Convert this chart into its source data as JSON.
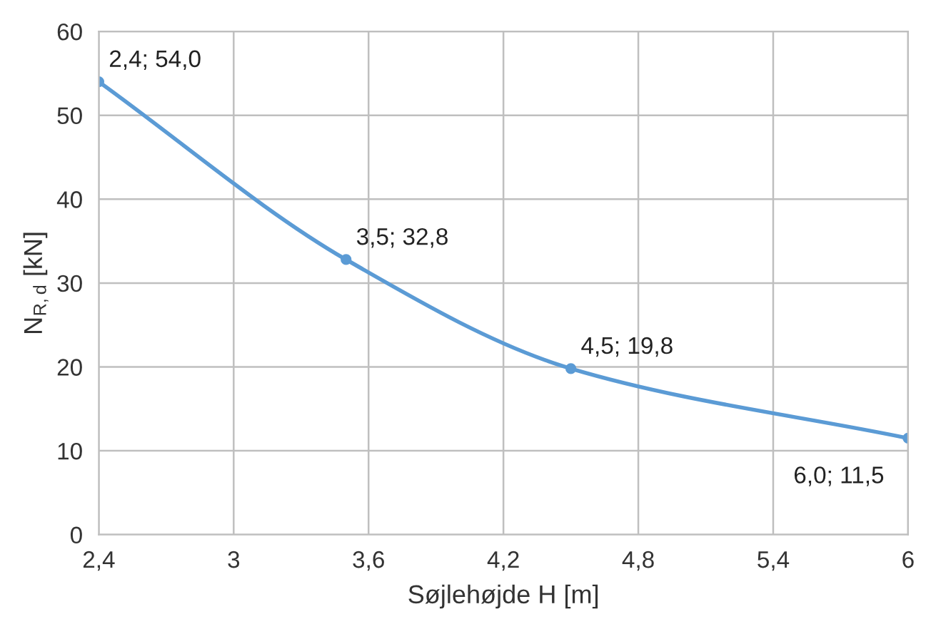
{
  "chart_data": {
    "type": "line",
    "xlabel": "Søjlehøjde H [m]",
    "ylabel": "N$_{R,d}$ [kN]",
    "x": [
      2.4,
      3.5,
      4.5,
      6.0
    ],
    "series": [
      {
        "color": "#5b9bd5",
        "values": [
          54.0,
          32.8,
          19.8,
          11.5
        ]
      }
    ],
    "marker": "circle",
    "line_style": "solid",
    "grid": true,
    "legend": false,
    "xlim": [
      2.4,
      6
    ],
    "ylim": [
      0,
      60
    ],
    "xticks": [
      {
        "value": 2.4,
        "label": "2,4"
      },
      {
        "value": 3,
        "label": "3"
      },
      {
        "value": 3.6,
        "label": "3,6"
      },
      {
        "value": 4.2,
        "label": "4,2"
      },
      {
        "value": 4.8,
        "label": "4,8"
      },
      {
        "value": 5.4,
        "label": "5,4"
      },
      {
        "value": 6,
        "label": "6"
      }
    ],
    "yticks": [
      0,
      10,
      20,
      30,
      40,
      50,
      60
    ],
    "annotations": [
      {
        "text": "2,4; 54,0",
        "x": 2.4,
        "y": 54.0
      },
      {
        "text": "3,5; 32,8",
        "x": 3.5,
        "y": 32.8
      },
      {
        "text": "4,5; 19,8",
        "x": 4.5,
        "y": 19.8
      },
      {
        "text": "6,0; 11,5",
        "x": 6.0,
        "y": 11.5
      }
    ]
  }
}
